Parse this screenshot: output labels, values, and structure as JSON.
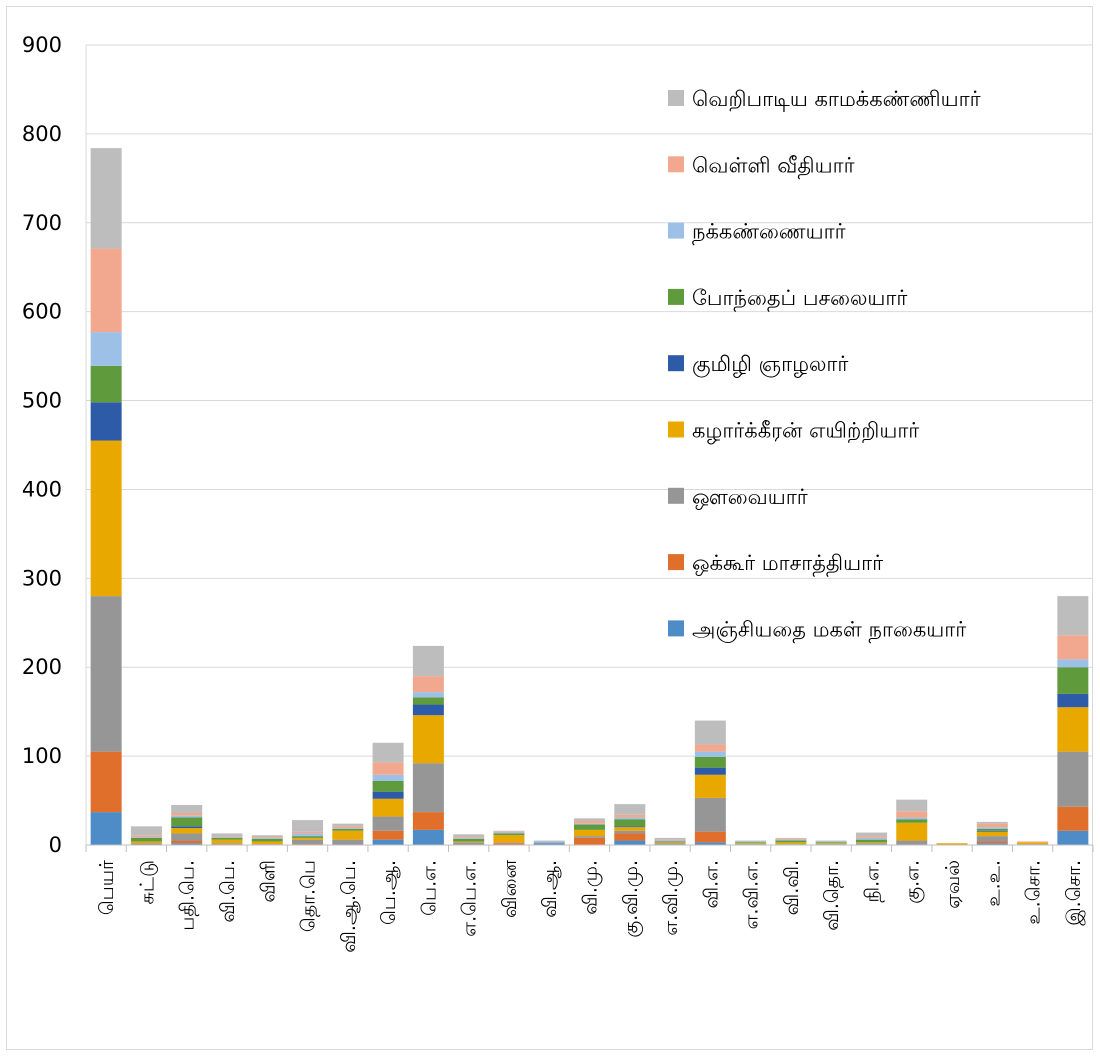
{
  "chart_data": {
    "type": "bar",
    "stacked": true,
    "ylim": [
      0,
      900
    ],
    "yticks": [
      0,
      100,
      200,
      300,
      400,
      500,
      600,
      700,
      800,
      900
    ],
    "grid": true,
    "legend_position": "right",
    "categories": [
      "பெயர்",
      "சுட்டு",
      "பதி.பெ.",
      "வி.பெ.",
      "விளி",
      "தொ.பெ",
      "வி.ஆ.பெ.",
      "பெ.ஆ.",
      "பெ.எ.",
      "எ.பெ.எ.",
      "வினை",
      "வி.ஆ.",
      "வி.மு.",
      "கு.வி.மு.",
      "எ.வி.மு.",
      "வி.எ.",
      "எ.வி.எ.",
      "வி.வி.",
      "வி.தொ.",
      "நி.எ.",
      "கு.எ.",
      "ஏவல்",
      "உ.உ.",
      "உ.சொ.",
      "இ.சொ."
    ],
    "series": [
      {
        "name": "அஞ்சியதை மகள் நாகையார்",
        "color": "#4e8cc8",
        "values": [
          37,
          0,
          2,
          0,
          0,
          0,
          0,
          6,
          17,
          0,
          0,
          2,
          0,
          5,
          0,
          3,
          0,
          0,
          0,
          0,
          0,
          0,
          2,
          0,
          16
        ]
      },
      {
        "name": "ஒக்கூர் மாசாத்தியார்",
        "color": "#e06f2c",
        "values": [
          68,
          0,
          3,
          1,
          0,
          1,
          0,
          10,
          20,
          0,
          2,
          0,
          8,
          8,
          0,
          12,
          0,
          0,
          0,
          0,
          0,
          0,
          2,
          0,
          27
        ]
      },
      {
        "name": "ஔவையார்",
        "color": "#969696",
        "values": [
          175,
          2,
          8,
          1,
          1,
          5,
          6,
          16,
          55,
          3,
          1,
          1,
          2,
          3,
          2,
          38,
          1,
          1,
          1,
          2,
          5,
          0,
          6,
          1,
          62
        ]
      },
      {
        "name": "கழார்க்கீரன் எயிற்றியார்",
        "color": "#e8a800",
        "values": [
          175,
          2,
          6,
          4,
          3,
          2,
          10,
          20,
          54,
          1,
          8,
          0,
          7,
          4,
          1,
          26,
          1,
          2,
          1,
          1,
          20,
          2,
          5,
          2,
          50
        ]
      },
      {
        "name": "குமிழி ஞாழலார்",
        "color": "#2e5ba8",
        "values": [
          43,
          0,
          2,
          0,
          0,
          0,
          0,
          8,
          12,
          0,
          0,
          0,
          0,
          1,
          0,
          8,
          0,
          0,
          0,
          0,
          0,
          0,
          1,
          0,
          15
        ]
      },
      {
        "name": "போந்தைப் பசலையார்",
        "color": "#5f9a3c",
        "values": [
          41,
          4,
          10,
          2,
          3,
          2,
          2,
          12,
          8,
          3,
          2,
          0,
          6,
          8,
          1,
          12,
          1,
          2,
          1,
          3,
          4,
          0,
          2,
          0,
          30
        ]
      },
      {
        "name": "நக்கண்ணையார்",
        "color": "#9dc0e6",
        "values": [
          38,
          1,
          2,
          1,
          1,
          3,
          1,
          7,
          6,
          1,
          1,
          1,
          1,
          2,
          1,
          6,
          1,
          1,
          1,
          2,
          2,
          0,
          2,
          0,
          9
        ]
      },
      {
        "name": "வெள்ளி வீதியார்",
        "color": "#f2a88e",
        "values": [
          94,
          2,
          3,
          1,
          1,
          2,
          2,
          14,
          18,
          1,
          1,
          0,
          3,
          3,
          1,
          8,
          0,
          1,
          0,
          2,
          7,
          0,
          4,
          1,
          27
        ]
      },
      {
        "name": "வெறிபாடிய காமக்கண்ணியார்",
        "color": "#bdbdbd",
        "values": [
          113,
          10,
          9,
          3,
          2,
          13,
          3,
          22,
          34,
          3,
          1,
          1,
          3,
          12,
          2,
          27,
          1,
          1,
          1,
          4,
          13,
          0,
          2,
          0,
          44
        ]
      }
    ]
  }
}
